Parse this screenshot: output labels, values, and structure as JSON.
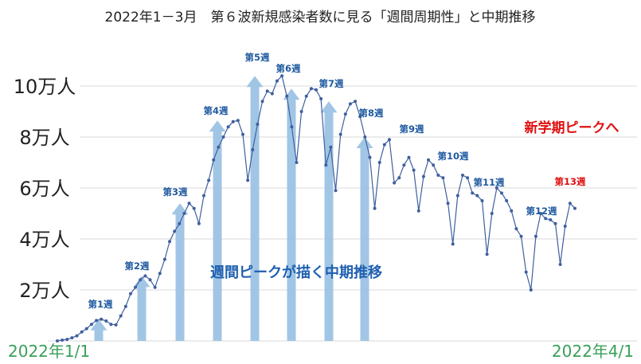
{
  "chart_data": {
    "type": "line",
    "title": "2022年1－3月　第６波新規感染者数に見る「週間周期性」と中期推移",
    "y_tick_labels": [
      "2万人",
      "4万人",
      "6万人",
      "8万人",
      "10万人"
    ],
    "y_tick_values": [
      20000,
      40000,
      60000,
      80000,
      100000
    ],
    "ylim": [
      0,
      110000
    ],
    "x_start_label": "2022年1/1",
    "x_end_label": "2022年4/1",
    "grid": true,
    "series": [
      {
        "values": [
          0,
          300,
          600,
          1200,
          2000,
          3500,
          4800,
          6500,
          8000,
          8500,
          7800,
          6500,
          6300,
          9800,
          13500,
          18500,
          21000,
          24000,
          25500,
          24000,
          21000,
          26500,
          32000,
          39000,
          43000,
          46000,
          50000,
          54000,
          52000,
          46000,
          57000,
          63000,
          71000,
          76000,
          80000,
          84000,
          86000,
          86500,
          81000,
          63000,
          75000,
          85000,
          94000,
          98000,
          97000,
          102000,
          104000,
          96000,
          84000,
          70000,
          90000,
          96000,
          99000,
          98500,
          95000,
          69000,
          76000,
          59000,
          81000,
          89000,
          93000,
          94000,
          88000,
          80000,
          72000,
          52000,
          70000,
          77000,
          79000,
          62000,
          64000,
          69000,
          72000,
          67000,
          51000,
          64500,
          71000,
          69000,
          65000,
          64000,
          54000,
          38000,
          57000,
          65000,
          64000,
          58000,
          57000,
          55000,
          34000,
          50000,
          60000,
          58000,
          55000,
          51000,
          44000,
          41000,
          27000,
          20000,
          41000,
          50000,
          48000,
          47500,
          46000,
          30000,
          45000,
          54000,
          52000
        ]
      }
    ],
    "weekly_peak_arrows": [
      {
        "label": "第1週",
        "value": 8500
      },
      {
        "label": "第2週",
        "value": 25500
      },
      {
        "label": "第3週",
        "value": 54000
      },
      {
        "label": "第4週",
        "value": 86500
      },
      {
        "label": "第5週",
        "value": 104000
      },
      {
        "label": "第6週",
        "value": 99000
      },
      {
        "label": "第7週",
        "value": 94000
      },
      {
        "label": "第8週",
        "value": 80000
      }
    ],
    "week_labels": [
      "第1週",
      "第2週",
      "第3週",
      "第4週",
      "第5週",
      "第6週",
      "第7週",
      "第8週",
      "第9週",
      "第10週",
      "第11週",
      "第12週",
      "第13週"
    ],
    "annotations": {
      "center": "週間ピークが描く中期推移",
      "top_right": "新学期ピークへ"
    },
    "colors": {
      "line": "#3f5f9f",
      "arrow": "#9cc3e4",
      "week_label": "#1f5aa0",
      "highlight": "#e01010",
      "date_label": "#3aa05a",
      "grid": "#d9d9d9"
    }
  }
}
